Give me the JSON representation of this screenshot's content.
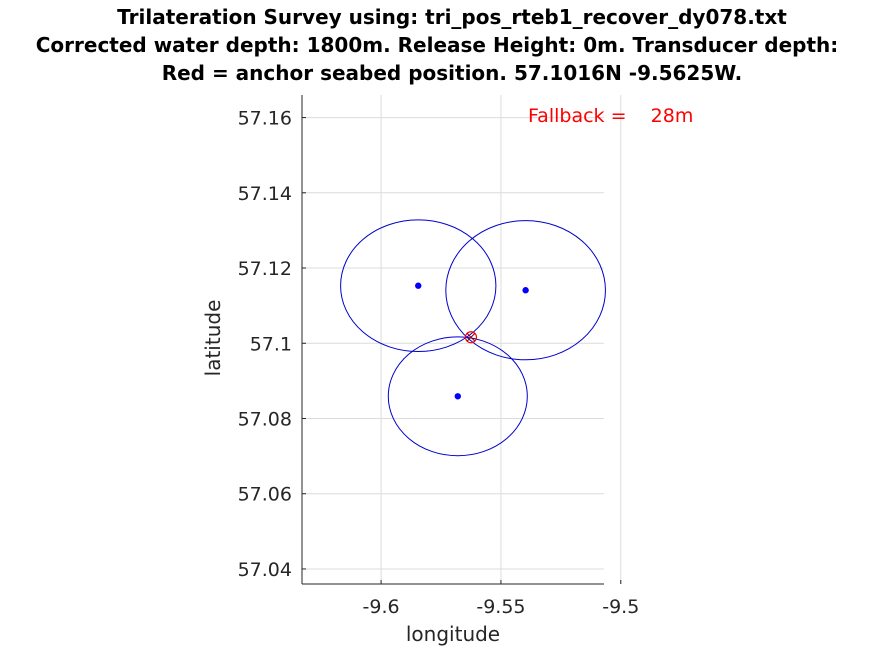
{
  "chart_data": {
    "type": "scatter",
    "title_lines": [
      "Trilateration Survey using: tri_pos_rteb1_recover_dy078.txt",
      "Corrected water depth: 1800m. Release Height: 0m. Transducer depth:",
      "Red = anchor seabed position. 57.1016N -9.5625W."
    ],
    "xlabel": "longitude",
    "ylabel": "latitude",
    "xlim": [
      -9.633,
      -9.507
    ],
    "ylim": [
      57.036,
      57.166
    ],
    "xticks": [
      -9.6,
      -9.55,
      -9.5
    ],
    "xtick_labels": [
      "-9.6",
      "-9.55",
      "-9.5"
    ],
    "yticks": [
      57.04,
      57.06,
      57.08,
      57.1,
      57.12,
      57.14,
      57.16
    ],
    "ytick_labels": [
      "57.04",
      "57.06",
      "57.08",
      "57.1",
      "57.12",
      "57.14",
      "57.16"
    ],
    "grid": true,
    "ranging_points": [
      {
        "lon": -9.5845,
        "lat": 57.1153
      },
      {
        "lon": -9.5397,
        "lat": 57.1141
      },
      {
        "lon": -9.568,
        "lat": 57.0859
      }
    ],
    "range_circles": [
      {
        "lon": -9.5845,
        "lat": 57.1153,
        "radius_deg_lon": 0.0324,
        "radius_deg_lat": 0.0175
      },
      {
        "lon": -9.5397,
        "lat": 57.1141,
        "radius_deg_lon": 0.0333,
        "radius_deg_lat": 0.0185
      },
      {
        "lon": -9.568,
        "lat": 57.0859,
        "radius_deg_lon": 0.029,
        "radius_deg_lat": 0.0158
      }
    ],
    "anchor": {
      "lon": -9.5625,
      "lat": 57.1016
    },
    "annotation": "Fallback =    28m",
    "colors": {
      "points": "#0000ff",
      "circles": "#0000cc",
      "anchor": "#ff0000",
      "annotation": "#ff0000"
    }
  }
}
